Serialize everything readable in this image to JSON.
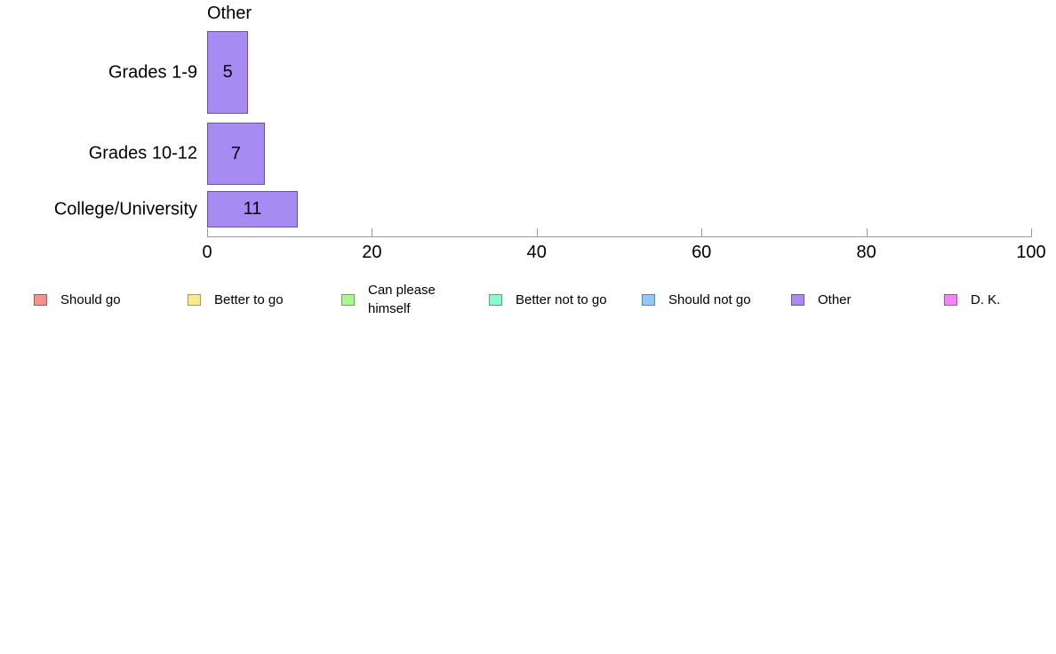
{
  "chart_data": {
    "type": "bar",
    "orientation": "horizontal",
    "title": "Other",
    "categories": [
      "Grades 1-9",
      "Grades 10-12",
      "College/University"
    ],
    "values": [
      5,
      7,
      11
    ],
    "bar_color": "#a78bf3",
    "xlabel": "",
    "ylabel": "",
    "xlim": [
      0,
      100
    ],
    "xticks": [
      0,
      20,
      40,
      60,
      80,
      100
    ],
    "grid": false,
    "legend_position": "bottom",
    "legend": [
      {
        "label": "Should go",
        "color": "#f6918b"
      },
      {
        "label": "Better to go",
        "color": "#fbe98e"
      },
      {
        "label": "Can please himself",
        "color": "#abf98d"
      },
      {
        "label": "Better not to go",
        "color": "#8df8c9"
      },
      {
        "label": "Should not go",
        "color": "#92c9f8"
      },
      {
        "label": "Other",
        "color": "#a78bf3"
      },
      {
        "label": "D. K.",
        "color": "#f684f6"
      }
    ]
  }
}
